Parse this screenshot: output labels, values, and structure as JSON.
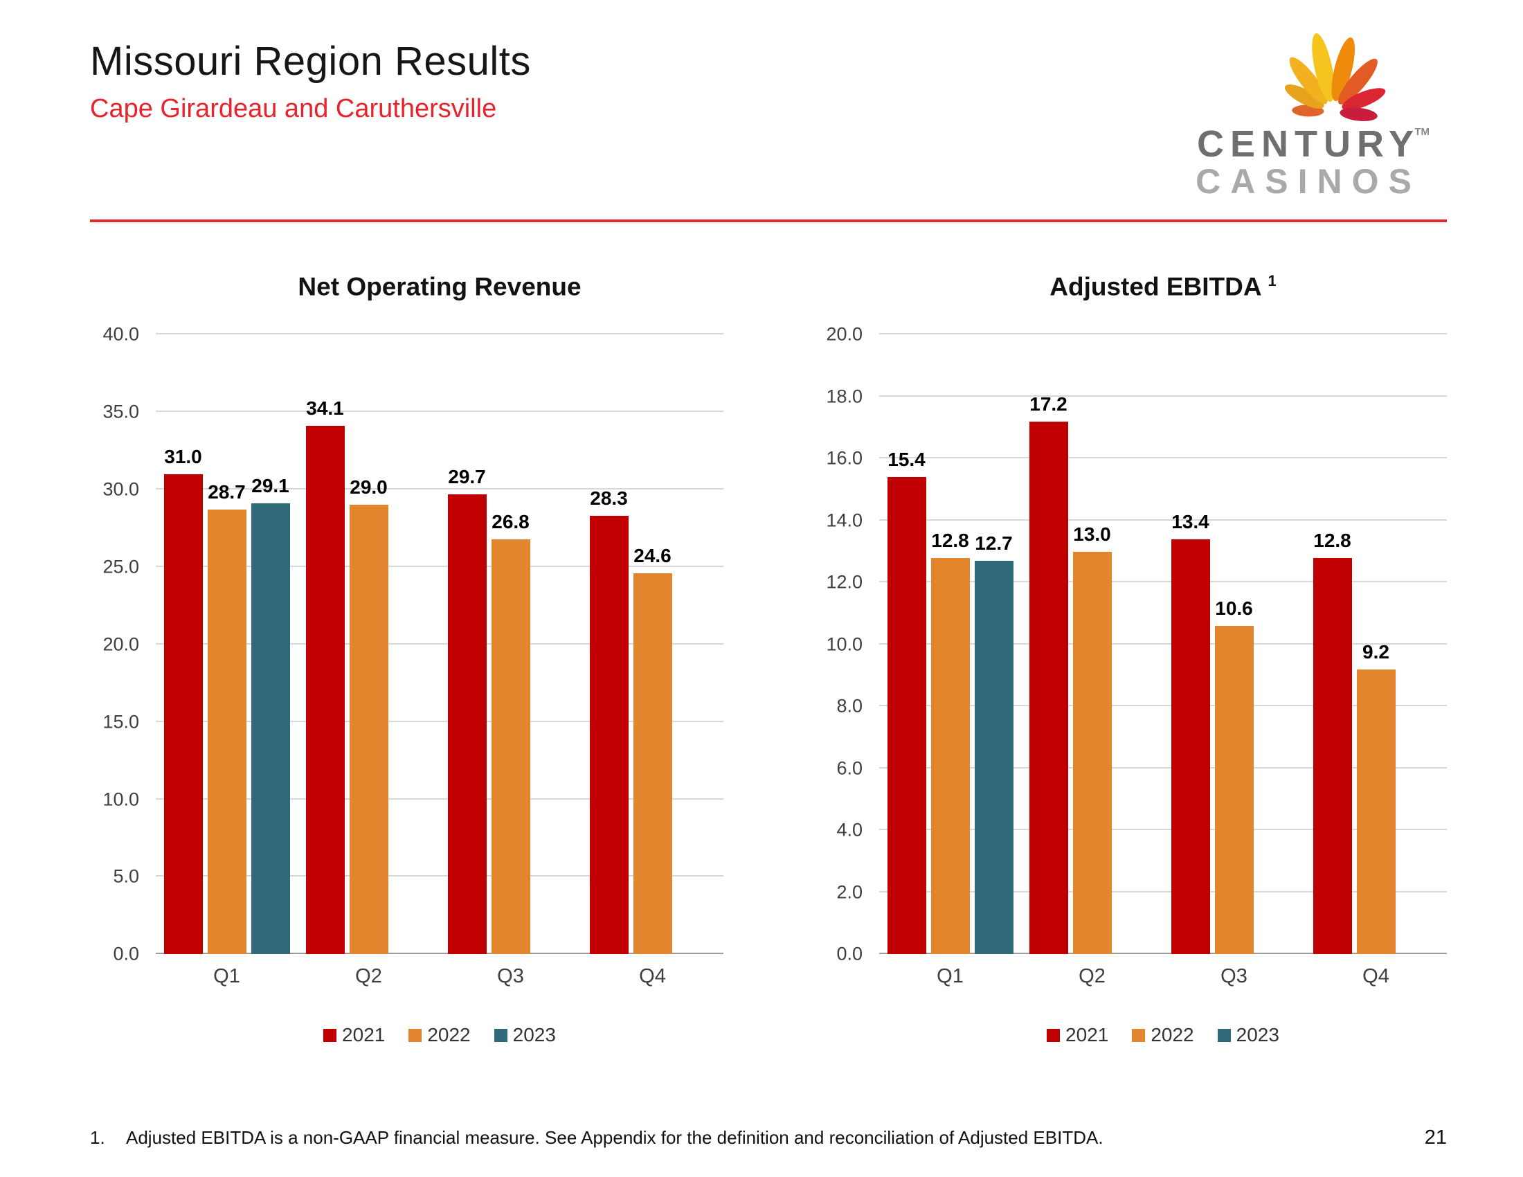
{
  "header": {
    "title": "Missouri Region Results",
    "subtitle": "Cape Girardeau and Caruthersville"
  },
  "logo": {
    "brand_line1": "CENTURY",
    "brand_line2": "CASINOS",
    "trademark": "TM"
  },
  "chart_data": [
    {
      "type": "bar",
      "title": "Net Operating Revenue",
      "title_superscript": "",
      "categories": [
        "Q1",
        "Q2",
        "Q3",
        "Q4"
      ],
      "series": [
        {
          "name": "2021",
          "color": "#C00000",
          "values": [
            31.0,
            34.1,
            29.7,
            28.3
          ]
        },
        {
          "name": "2022",
          "color": "#E2852C",
          "values": [
            28.7,
            29.0,
            26.8,
            24.6
          ]
        },
        {
          "name": "2023",
          "color": "#30697A",
          "values": [
            29.1,
            null,
            null,
            null
          ]
        }
      ],
      "ylim": [
        0,
        40
      ],
      "yticks": [
        0.0,
        5.0,
        10.0,
        15.0,
        20.0,
        25.0,
        30.0,
        35.0,
        40.0
      ],
      "grid": true,
      "legend_position": "bottom",
      "value_label_decimals": 1
    },
    {
      "type": "bar",
      "title": "Adjusted EBITDA",
      "title_superscript": "1",
      "categories": [
        "Q1",
        "Q2",
        "Q3",
        "Q4"
      ],
      "series": [
        {
          "name": "2021",
          "color": "#C00000",
          "values": [
            15.4,
            17.2,
            13.4,
            12.8
          ]
        },
        {
          "name": "2022",
          "color": "#E2852C",
          "values": [
            12.8,
            13.0,
            10.6,
            9.2
          ]
        },
        {
          "name": "2023",
          "color": "#30697A",
          "values": [
            12.7,
            null,
            null,
            null
          ]
        }
      ],
      "ylim": [
        0,
        20
      ],
      "yticks": [
        0.0,
        2.0,
        4.0,
        6.0,
        8.0,
        10.0,
        12.0,
        14.0,
        16.0,
        18.0,
        20.0
      ],
      "grid": true,
      "legend_position": "bottom",
      "value_label_decimals": 1
    }
  ],
  "footnote": {
    "number": "1.",
    "text": "Adjusted EBITDA is a non-GAAP financial measure. See Appendix for the definition and reconciliation of Adjusted EBITDA."
  },
  "page_number": "21",
  "colors": {
    "accent_red": "#E02A30",
    "subtitle_red": "#E8232C",
    "bar_2021": "#C00000",
    "bar_2022": "#E2852C",
    "bar_2023": "#30697A",
    "gridline_gray": "#D8D8D8"
  }
}
